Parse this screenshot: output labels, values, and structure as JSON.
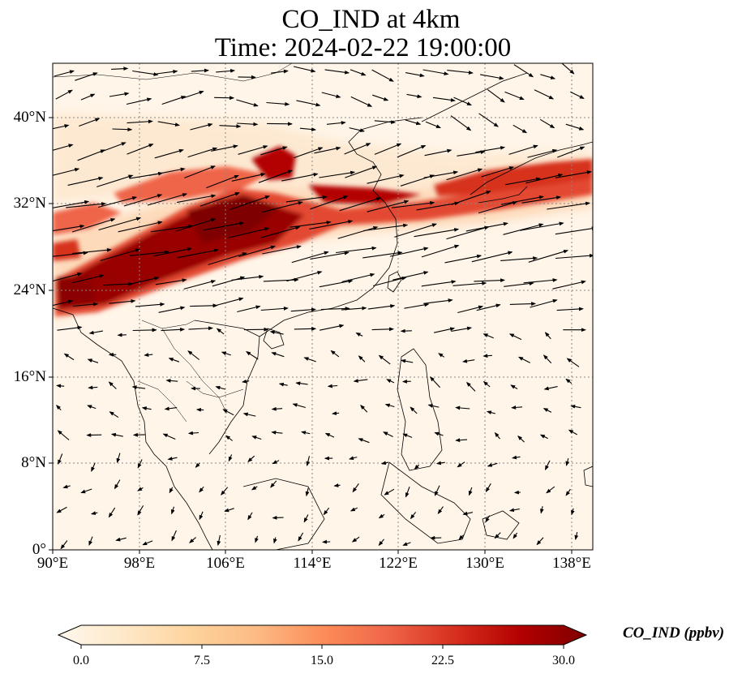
{
  "title": {
    "line1": "CO_IND at 4km",
    "line2": "Time: 2024-02-22 19:00:00"
  },
  "map": {
    "lon_range": [
      90,
      140
    ],
    "lat_range": [
      0,
      45
    ],
    "lon_ticks": [
      "90°E",
      "98°E",
      "106°E",
      "114°E",
      "122°E",
      "130°E",
      "138°E"
    ],
    "lat_ticks": [
      "0°",
      "8°N",
      "16°N",
      "24°N",
      "32°N",
      "40°N"
    ],
    "gridlines": "dotted",
    "field": "CO_IND concentration shading with wind vectors",
    "plume_color": "#8b0000",
    "background_color": "#fff5e8",
    "vector_color": "#000000",
    "coastline_color": "#000000"
  },
  "colorbar": {
    "label": "CO_IND (ppbv)",
    "ticks": [
      "0.0",
      "7.5",
      "15.0",
      "22.5",
      "30.0"
    ],
    "range": [
      0,
      30
    ],
    "colormap": "OrRd",
    "colors": [
      "#fff7ec",
      "#fee8c8",
      "#fdd49e",
      "#fdbb84",
      "#fc8d59",
      "#ef6548",
      "#d7301f",
      "#b30000",
      "#7f0000"
    ]
  }
}
